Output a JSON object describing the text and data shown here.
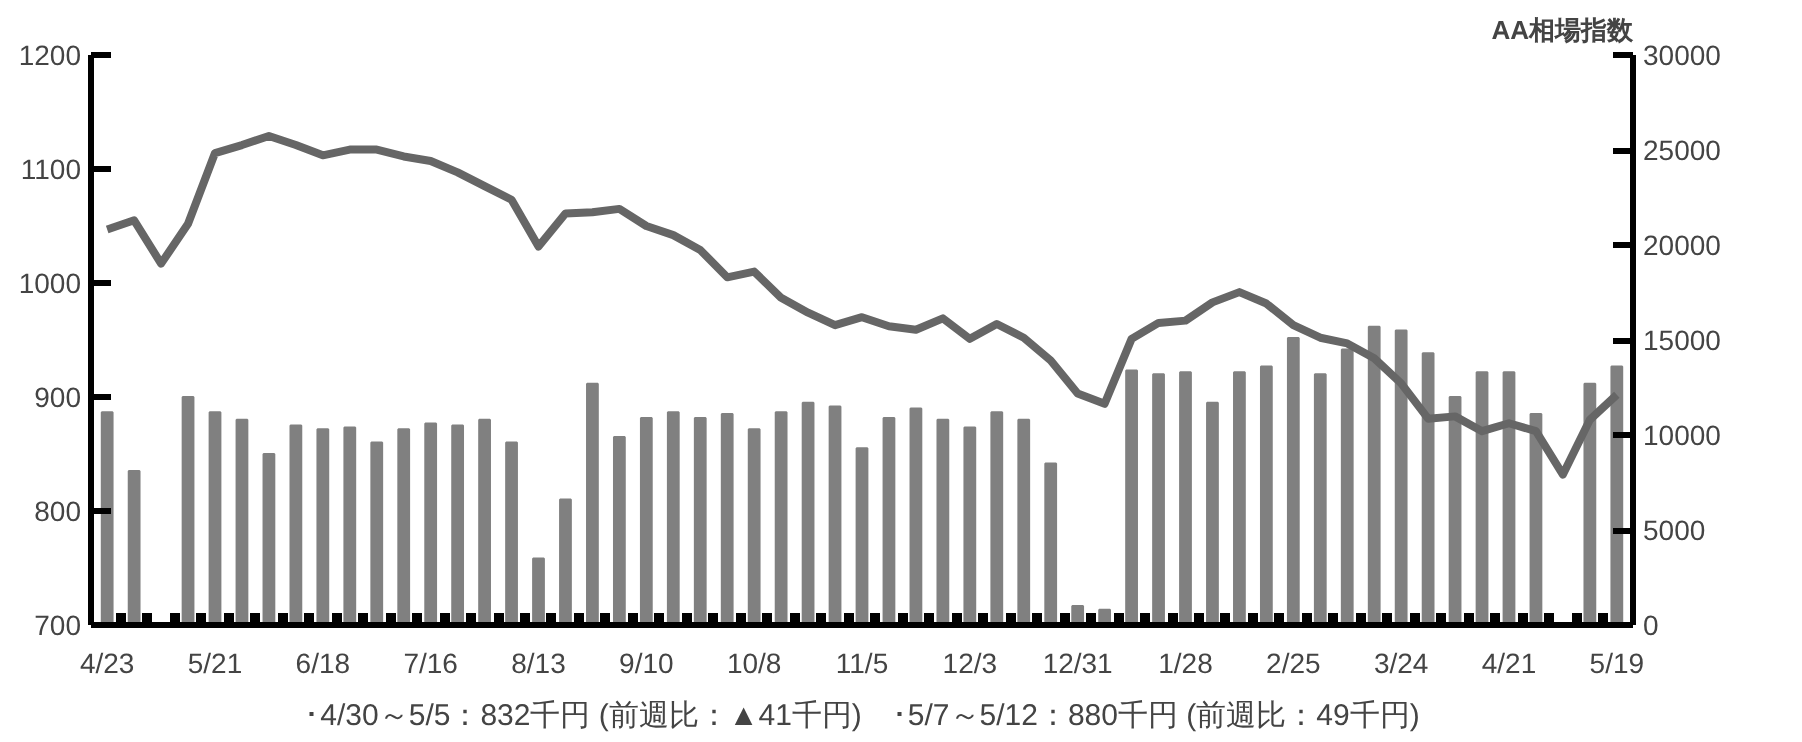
{
  "chart_data": {
    "type": "bar",
    "y2label": "AA相場指数",
    "categories": [
      "4/23",
      null,
      null,
      null,
      "5/21",
      null,
      null,
      null,
      "6/18",
      null,
      null,
      null,
      "7/16",
      null,
      null,
      null,
      "8/13",
      null,
      null,
      null,
      "9/10",
      null,
      null,
      null,
      "10/8",
      null,
      null,
      null,
      "11/5",
      null,
      null,
      null,
      "12/3",
      null,
      null,
      null,
      "12/31",
      null,
      null,
      null,
      "1/28",
      null,
      null,
      null,
      "2/25",
      null,
      null,
      null,
      "3/24",
      null,
      null,
      null,
      "4/21",
      null,
      null,
      null,
      "5/19"
    ],
    "series": [
      {
        "axis": "y2",
        "color": "#808080",
        "values": [
          11200,
          8100,
          null,
          12000,
          11200,
          10800,
          9000,
          10500,
          10300,
          10400,
          9600,
          10300,
          10600,
          10500,
          10800,
          9600,
          3500,
          6600,
          12700,
          9900,
          10900,
          11200,
          10900,
          11100,
          10300,
          11200,
          11700,
          11500,
          9300,
          10900,
          11400,
          10800,
          10400,
          11200,
          10800,
          8500,
          1000,
          800,
          13400,
          13200,
          13300,
          11700,
          13300,
          13600,
          15100,
          13200,
          14500,
          15700,
          15500,
          14300,
          12000,
          13300,
          13300,
          11100,
          null,
          12700,
          13600
        ]
      },
      {
        "type": "line",
        "axis": "y",
        "color": "#666666",
        "values": [
          1047,
          1055,
          1017,
          1052,
          1114,
          1121,
          1129,
          1121,
          1112,
          1117,
          1117,
          1111,
          1107,
          1097,
          1085,
          1073,
          1032,
          1061,
          1062,
          1065,
          1050,
          1042,
          1029,
          1005,
          1010,
          987,
          974,
          963,
          970,
          962,
          959,
          969,
          951,
          964,
          952,
          932,
          903,
          894,
          951,
          965,
          967,
          983,
          992,
          982,
          963,
          952,
          947,
          934,
          912,
          881,
          883,
          870,
          877,
          870,
          832,
          880,
          902
        ]
      }
    ],
    "ylim": [
      700,
      1200
    ],
    "yticks": [
      700,
      800,
      900,
      1000,
      1100,
      1200
    ],
    "y2lim": [
      0,
      30000
    ],
    "y2ticks": [
      0,
      5000,
      10000,
      15000,
      20000,
      25000,
      30000
    ],
    "grid": false,
    "annotations": [
      "･4/30～5/5：832千円 (前週比：▲41千円)　･5/7～5/12：880千円 (前週比：49千円)"
    ]
  }
}
